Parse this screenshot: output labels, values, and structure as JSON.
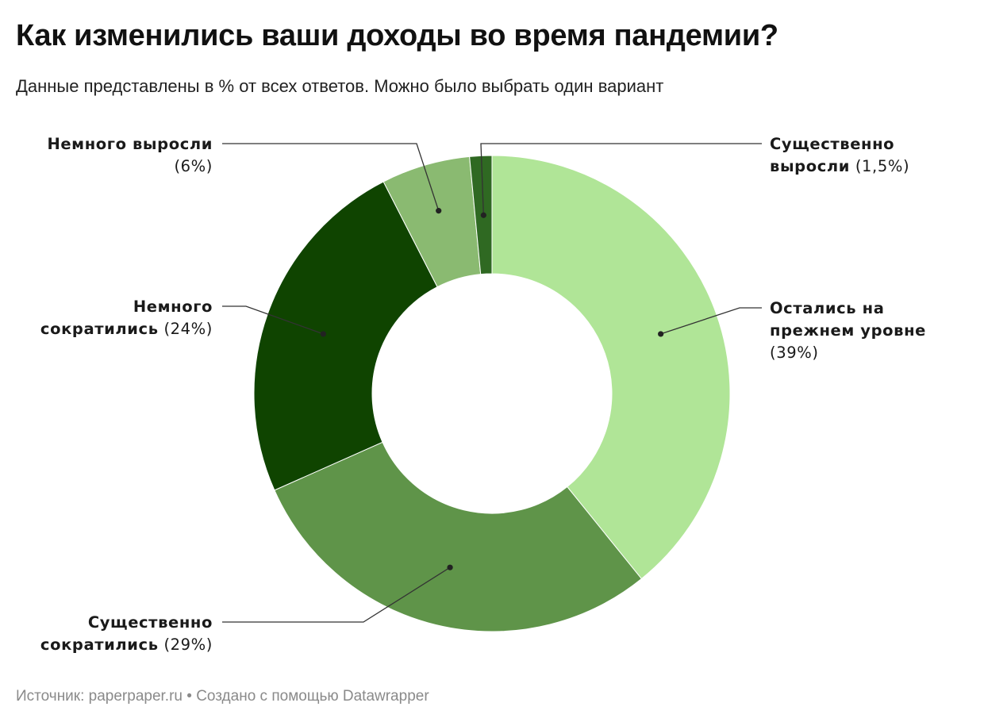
{
  "header": {
    "title": "Как изменились ваши доходы во время пандемии?",
    "subtitle": "Данные представлены в % от всех ответов. Можно было выбрать один вариант"
  },
  "footer": {
    "source": "Источник: paperpaper.ru • Создано с помощью Datawrapper"
  },
  "chart_data": {
    "type": "pie",
    "donut": true,
    "title": "Как изменились ваши доходы во время пандемии?",
    "subtitle": "Данные представлены в % от всех ответов. Можно было выбрать один вариант",
    "unit": "%",
    "slices": [
      {
        "label": "Остались на прежнем уровне",
        "value": 39,
        "value_label": "(39%)",
        "label_lines": [
          "Остались на",
          "прежнем уровне"
        ],
        "color": "#b0e597"
      },
      {
        "label": "Существенно сократились",
        "value": 29,
        "value_label": "(29%)",
        "label_lines": [
          "Существенно",
          "сократились"
        ],
        "color": "#5f9449"
      },
      {
        "label": "Немного сократились",
        "value": 24,
        "value_label": "(24%)",
        "label_lines": [
          "Немного",
          "сократились"
        ],
        "color": "#0f4400"
      },
      {
        "label": "Немного выросли",
        "value": 6,
        "value_label": "(6%)",
        "label_lines": [
          "Немного выросли"
        ],
        "color": "#8aba71"
      },
      {
        "label": "Существенно выросли",
        "value": 1.5,
        "value_label": "(1,5%)",
        "label_lines": [
          "Существенно",
          "выросли"
        ],
        "color": "#2f6922"
      }
    ]
  }
}
